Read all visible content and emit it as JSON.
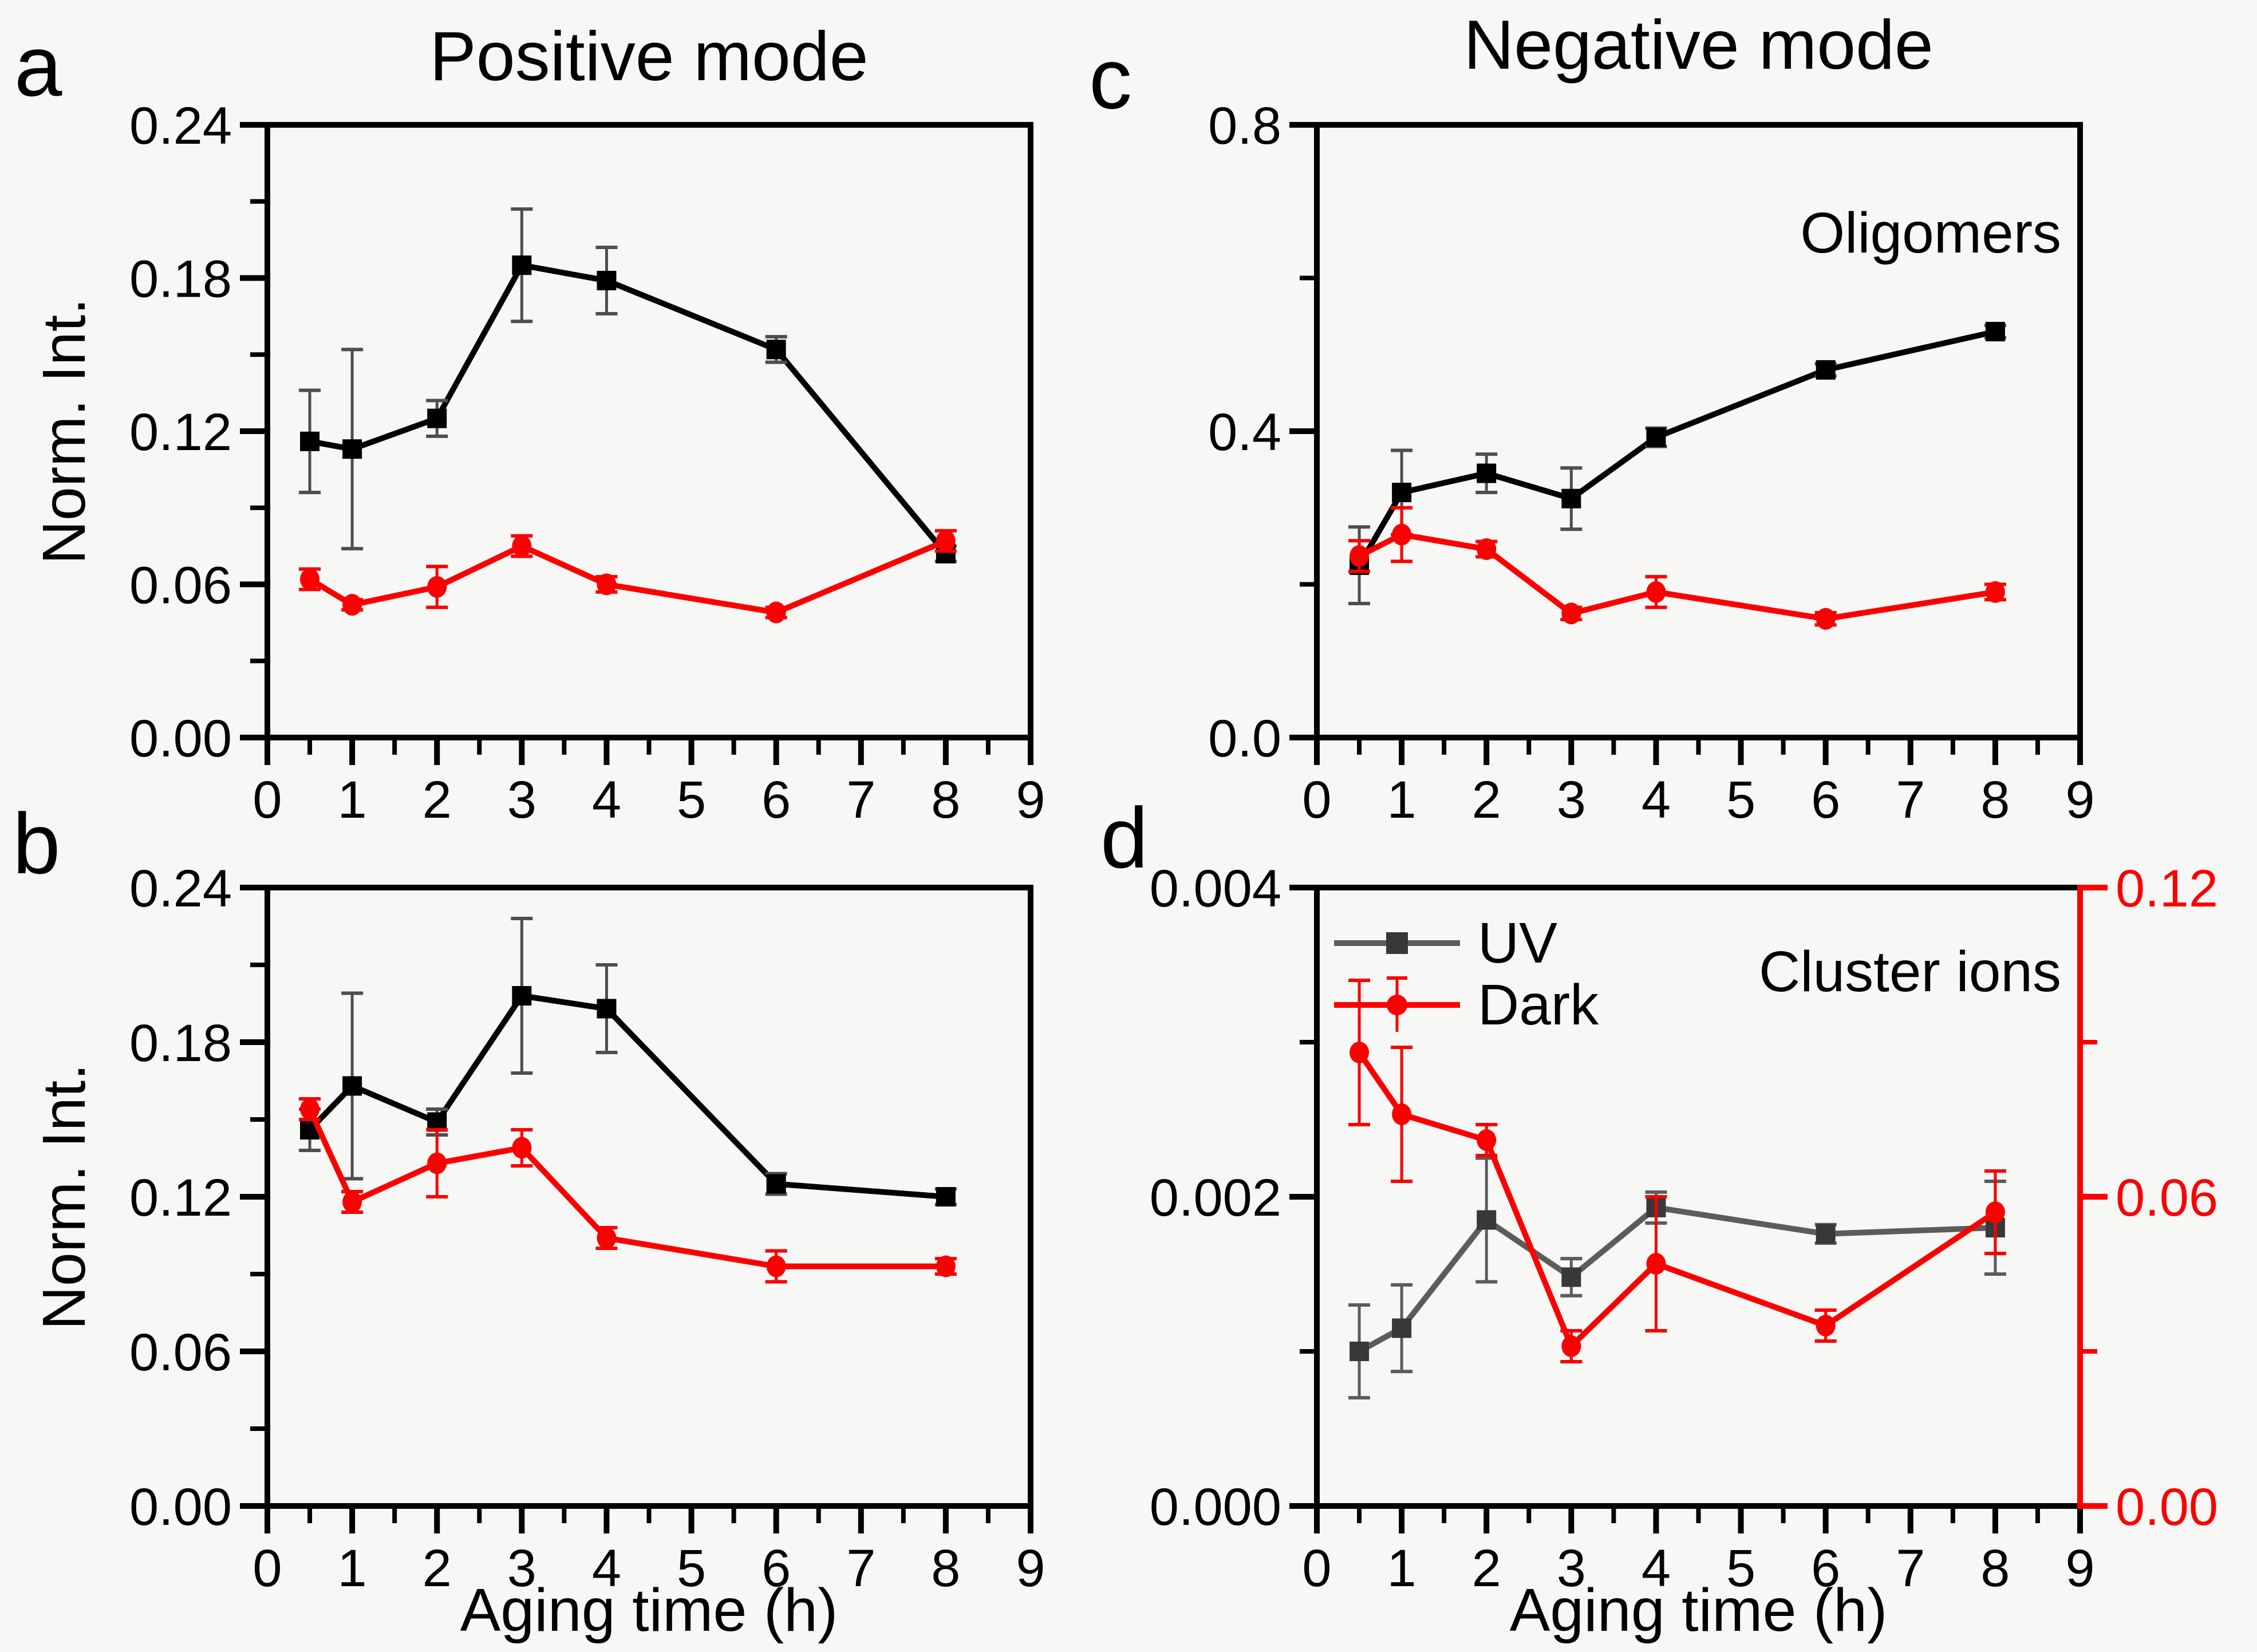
{
  "figure": {
    "panel_letters": [
      "a",
      "b",
      "c",
      "d"
    ],
    "titles": {
      "left_column": "Positive mode",
      "right_column": "Negative mode"
    },
    "axis_titles": {
      "y": "Norm. Int.",
      "x": "Aging time (h)"
    },
    "annotations": {
      "panel_c": "Oligomers",
      "panel_d": "Cluster ions"
    },
    "legend": {
      "items": [
        {
          "label": "UV"
        },
        {
          "label": "Dark"
        }
      ]
    },
    "colors": {
      "uv_black": "#000000",
      "dark_red": "#fa0000",
      "uv_gray_marker": "#383838",
      "uv_gray_line": "#5c5c5c",
      "err_gray": "#4e4e4e",
      "axis_black": "#000000"
    }
  },
  "chart_data": [
    {
      "id": "a",
      "type": "line",
      "title": "Positive mode",
      "ylabel": "Norm. Int.",
      "xlabel": "",
      "xlim": [
        0,
        9
      ],
      "ylim": [
        0,
        0.24
      ],
      "x_ticks": {
        "major": [
          0,
          1,
          2,
          3,
          4,
          5,
          6,
          7,
          8,
          9
        ],
        "labels": [
          "0",
          "1",
          "2",
          "3",
          "4",
          "5",
          "6",
          "7",
          "8",
          "9"
        ],
        "minor": [
          0.5,
          1.5,
          2.5,
          3.5,
          4.5,
          5.5,
          6.5,
          7.5,
          8.5
        ]
      },
      "y_ticks": {
        "major": [
          0,
          0.06,
          0.12,
          0.18,
          0.24
        ],
        "labels": [
          "0.00",
          "0.06",
          "0.12",
          "0.18",
          "0.24"
        ],
        "minor": [
          0.03,
          0.09,
          0.15,
          0.21
        ]
      },
      "x": [
        0.5,
        1,
        2,
        3,
        4,
        6,
        8
      ],
      "series": [
        {
          "name": "UV",
          "axis": "left",
          "marker": "square",
          "line_color": "#000000",
          "marker_color": "#000000",
          "err_color": "#4e4e4e",
          "values": [
            0.116,
            0.113,
            0.125,
            0.185,
            0.179,
            0.152,
            0.072
          ],
          "errors": [
            0.02,
            0.039,
            0.007,
            0.022,
            0.013,
            0.005,
            0.003
          ]
        },
        {
          "name": "Dark",
          "axis": "left",
          "marker": "circle",
          "line_color": "#fa0000",
          "marker_color": "#fa0000",
          "err_color": "#fa0000",
          "values": [
            0.062,
            0.052,
            0.059,
            0.075,
            0.06,
            0.049,
            0.077
          ],
          "errors": [
            0.004,
            0.002,
            0.008,
            0.004,
            0.003,
            0.002,
            0.004
          ]
        }
      ]
    },
    {
      "id": "b",
      "type": "line",
      "title": "",
      "ylabel": "Norm. Int.",
      "xlabel": "Aging time (h)",
      "xlim": [
        0,
        9
      ],
      "ylim": [
        0,
        0.24
      ],
      "x_ticks": {
        "major": [
          0,
          1,
          2,
          3,
          4,
          5,
          6,
          7,
          8,
          9
        ],
        "labels": [
          "0",
          "1",
          "2",
          "3",
          "4",
          "5",
          "6",
          "7",
          "8",
          "9"
        ],
        "minor": [
          0.5,
          1.5,
          2.5,
          3.5,
          4.5,
          5.5,
          6.5,
          7.5,
          8.5
        ]
      },
      "y_ticks": {
        "major": [
          0,
          0.06,
          0.12,
          0.18,
          0.24
        ],
        "labels": [
          "0.00",
          "0.06",
          "0.12",
          "0.18",
          "0.24"
        ],
        "minor": [
          0.03,
          0.09,
          0.15,
          0.21
        ]
      },
      "x": [
        0.5,
        1,
        2,
        3,
        4,
        6,
        8
      ],
      "series": [
        {
          "name": "UV",
          "axis": "left",
          "marker": "square",
          "line_color": "#000000",
          "marker_color": "#000000",
          "err_color": "#4e4e4e",
          "values": [
            0.146,
            0.163,
            0.149,
            0.198,
            0.193,
            0.125,
            0.12
          ],
          "errors": [
            0.008,
            0.036,
            0.005,
            0.03,
            0.017,
            0.004,
            0.003
          ]
        },
        {
          "name": "Dark",
          "axis": "left",
          "marker": "circle",
          "line_color": "#fa0000",
          "marker_color": "#fa0000",
          "err_color": "#fa0000",
          "values": [
            0.154,
            0.118,
            0.133,
            0.139,
            0.104,
            0.093,
            0.093
          ],
          "errors": [
            0.004,
            0.004,
            0.013,
            0.007,
            0.004,
            0.006,
            0.003
          ]
        }
      ]
    },
    {
      "id": "c",
      "type": "line",
      "title": "Negative mode",
      "annotation": "Oligomers",
      "ylabel": "",
      "xlabel": "",
      "xlim": [
        0,
        9
      ],
      "ylim": [
        0,
        0.8
      ],
      "x_ticks": {
        "major": [
          0,
          1,
          2,
          3,
          4,
          5,
          6,
          7,
          8,
          9
        ],
        "labels": [
          "0",
          "1",
          "2",
          "3",
          "4",
          "5",
          "6",
          "7",
          "8",
          "9"
        ],
        "minor": [
          0.5,
          1.5,
          2.5,
          3.5,
          4.5,
          5.5,
          6.5,
          7.5,
          8.5
        ]
      },
      "y_ticks": {
        "major": [
          0,
          0.4,
          0.8
        ],
        "labels": [
          "0.0",
          "0.4",
          "0.8"
        ],
        "minor": [
          0.2,
          0.6
        ]
      },
      "x": [
        0.5,
        1,
        2,
        3,
        4,
        6,
        8
      ],
      "series": [
        {
          "name": "UV",
          "axis": "left",
          "marker": "square",
          "line_color": "#000000",
          "marker_color": "#000000",
          "err_color": "#4e4e4e",
          "values": [
            0.225,
            0.32,
            0.345,
            0.312,
            0.392,
            0.48,
            0.53
          ],
          "errors": [
            0.05,
            0.055,
            0.025,
            0.04,
            0.012,
            0.008,
            0.008
          ]
        },
        {
          "name": "Dark",
          "axis": "left",
          "marker": "circle",
          "line_color": "#fa0000",
          "marker_color": "#fa0000",
          "err_color": "#fa0000",
          "values": [
            0.237,
            0.265,
            0.246,
            0.162,
            0.19,
            0.155,
            0.19
          ],
          "errors": [
            0.02,
            0.035,
            0.01,
            0.008,
            0.02,
            0.008,
            0.01
          ]
        }
      ]
    },
    {
      "id": "d",
      "type": "line",
      "title": "",
      "annotation": "Cluster ions",
      "ylabel": "",
      "xlabel": "Aging time (h)",
      "has_legend": true,
      "xlim": [
        0,
        9
      ],
      "ylim": [
        0,
        0.004
      ],
      "x_ticks": {
        "major": [
          0,
          1,
          2,
          3,
          4,
          5,
          6,
          7,
          8,
          9
        ],
        "labels": [
          "0",
          "1",
          "2",
          "3",
          "4",
          "5",
          "6",
          "7",
          "8",
          "9"
        ],
        "minor": [
          0.5,
          1.5,
          2.5,
          3.5,
          4.5,
          5.5,
          6.5,
          7.5,
          8.5
        ]
      },
      "y_ticks": {
        "major": [
          0,
          0.002,
          0.004
        ],
        "labels": [
          "0.000",
          "0.002",
          "0.004"
        ],
        "minor": [
          0.001,
          0.003
        ]
      },
      "y2lim": [
        0,
        0.12
      ],
      "y2_ticks": {
        "major": [
          0,
          0.06,
          0.12
        ],
        "labels": [
          "0.00",
          "0.06",
          "0.12"
        ],
        "minor": [
          0.03,
          0.09
        ],
        "color": "#fa0000"
      },
      "x": [
        0.5,
        1,
        2,
        3,
        4,
        6,
        8
      ],
      "series": [
        {
          "name": "UV",
          "axis": "left",
          "marker": "square",
          "line_color": "#5c5c5c",
          "marker_color": "#383838",
          "err_color": "#5c5c5c",
          "values": [
            0.001,
            0.00115,
            0.00185,
            0.00148,
            0.00193,
            0.00176,
            0.0018
          ],
          "errors": [
            0.0003,
            0.00028,
            0.0004,
            0.00012,
            0.0001,
            6e-05,
            0.0003
          ]
        },
        {
          "name": "Dark",
          "axis": "right",
          "marker": "circle",
          "line_color": "#fa0000",
          "marker_color": "#fa0000",
          "err_color": "#fa0000",
          "values": [
            0.088,
            0.076,
            0.071,
            0.031,
            0.047,
            0.035,
            0.057
          ],
          "errors": [
            0.014,
            0.013,
            0.003,
            0.003,
            0.013,
            0.003,
            0.008
          ]
        }
      ]
    }
  ]
}
